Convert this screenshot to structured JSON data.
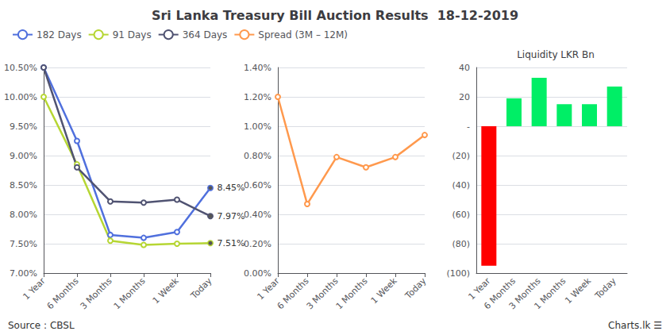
{
  "chart_data": [
    {
      "type": "line",
      "title": "Sri Lanka Treasury Bill Auction Results  18-12-2019",
      "categories": [
        "1 Year",
        "6 Months",
        "3 Months",
        "1 Months",
        "1 Week",
        "Today"
      ],
      "series": [
        {
          "name": "182 Days",
          "values": [
            10.5,
            9.25,
            7.65,
            7.6,
            7.7,
            8.45
          ]
        },
        {
          "name": "91 Days",
          "values": [
            10.0,
            8.85,
            7.55,
            7.48,
            7.5,
            7.51
          ]
        },
        {
          "name": "364 Days",
          "values": [
            10.5,
            8.8,
            8.22,
            8.2,
            8.25,
            7.97
          ]
        }
      ],
      "ylim": [
        7.0,
        10.5
      ],
      "yticks": [
        {
          "value": 7.0,
          "label": "7.00%"
        },
        {
          "value": 7.5,
          "label": "7.50%"
        },
        {
          "value": 8.0,
          "label": "8.00%"
        },
        {
          "value": 8.5,
          "label": "8.50%"
        },
        {
          "value": 9.0,
          "label": "9.00%"
        },
        {
          "value": 9.5,
          "label": "9.50%"
        },
        {
          "value": 10.0,
          "label": "10.00%"
        },
        {
          "value": 10.5,
          "label": "10.50%"
        }
      ],
      "grid": true,
      "legend": "top",
      "annotations": [
        {
          "text": "8.45%",
          "x": "Today",
          "y": 8.45
        },
        {
          "text": "7.97%",
          "x": "Today",
          "y": 7.97
        },
        {
          "text": "7.51%",
          "x": "Today",
          "y": 7.51
        },
        {
          "text": "Source : CBSL"
        },
        {
          "text": "Charts.lk ☰"
        }
      ]
    },
    {
      "type": "line",
      "categories": [
        "1 Year",
        "6 Months",
        "3 Months",
        "1 Months",
        "1 Week",
        "Today"
      ],
      "series": [
        {
          "name": "Spread (3M – 12M)",
          "values": [
            1.2,
            0.47,
            0.79,
            0.72,
            0.79,
            0.94
          ]
        }
      ],
      "ylim": [
        0.0,
        1.4
      ],
      "yticks": [
        {
          "value": 0.0,
          "label": "0.00%"
        },
        {
          "value": 0.2,
          "label": "0.20%"
        },
        {
          "value": 0.4,
          "label": "0.40%"
        },
        {
          "value": 0.6,
          "label": "0.60%"
        },
        {
          "value": 0.8,
          "label": "0.80%"
        },
        {
          "value": 1.0,
          "label": "1.00%"
        },
        {
          "value": 1.2,
          "label": "1.20%"
        },
        {
          "value": 1.4,
          "label": "1.40%"
        }
      ],
      "grid": true,
      "legend": "top"
    },
    {
      "type": "bar",
      "title": "Liquidity LKR Bn",
      "categories": [
        "1 Year",
        "6 Months",
        "3 Months",
        "1 Months",
        "1 Week",
        "Today"
      ],
      "values": [
        -95,
        19,
        33,
        15,
        15,
        27
      ],
      "colors": [
        "#ff0000",
        "#00ee66",
        "#00ee66",
        "#00ee66",
        "#00ee66",
        "#00ee66"
      ],
      "ylim": [
        -100,
        40
      ],
      "yticks": [
        40,
        20,
        {
          "value": 0,
          "label": "-"
        },
        {
          "value": -20,
          "label": "(20)"
        },
        {
          "value": -40,
          "label": "(40)"
        },
        {
          "value": -60,
          "label": "(60)"
        },
        {
          "value": -80,
          "label": "(80)"
        },
        {
          "value": -100,
          "label": "(100)"
        }
      ],
      "grid": true
    }
  ]
}
